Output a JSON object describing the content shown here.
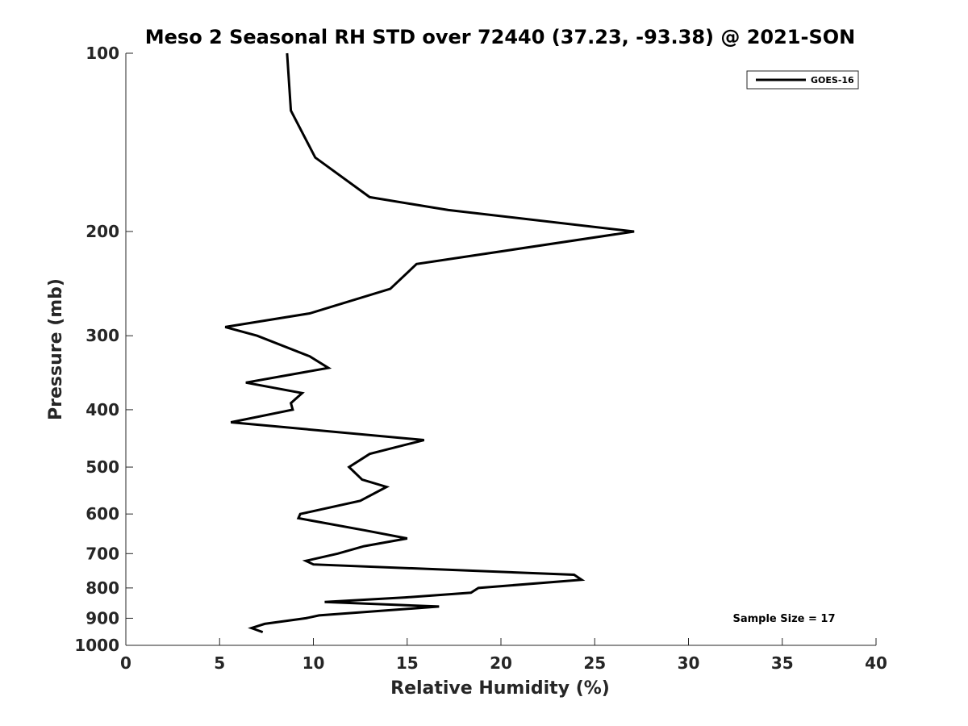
{
  "chart_data": {
    "type": "line",
    "title": "Meso 2 Seasonal RH STD over 72440 (37.23, -93.38) @ 2021-SON",
    "xlabel": "Relative Humidity (%)",
    "ylabel": "Pressure (mb)",
    "xlim": [
      0,
      40
    ],
    "ylim": [
      100,
      1000
    ],
    "y_scale": "log",
    "y_reversed": true,
    "x_ticks": [
      "0",
      "5",
      "10",
      "15",
      "20",
      "25",
      "30",
      "35",
      "40"
    ],
    "y_ticks": [
      "100",
      "200",
      "300",
      "400",
      "500",
      "600",
      "700",
      "800",
      "900",
      "1000"
    ],
    "grid": false,
    "legend_position": "top-right",
    "annotation": "Sample Size = 17",
    "series": [
      {
        "name": "GOES-16",
        "color": "#000000",
        "x": [
          8.6,
          8.8,
          10.1,
          13.0,
          17.2,
          27.1,
          15.5,
          14.1,
          9.8,
          5.3,
          7.0,
          9.8,
          10.8,
          6.4,
          9.4,
          8.8,
          8.9,
          5.6,
          15.9,
          13.0,
          11.9,
          12.6,
          13.9,
          12.5,
          9.3,
          9.2,
          12.8,
          15.0,
          12.7,
          11.3,
          9.6,
          10.0,
          23.9,
          24.3,
          18.8,
          18.4,
          14.9,
          10.6,
          16.7,
          10.3,
          9.6,
          7.4,
          6.7,
          7.3
        ],
        "y": [
          100,
          125,
          150,
          175,
          184,
          200,
          227,
          250,
          275,
          290,
          300,
          325,
          340,
          360,
          375,
          390,
          400,
          420,
          450,
          475,
          500,
          525,
          540,
          570,
          600,
          610,
          640,
          660,
          680,
          700,
          720,
          730,
          760,
          775,
          800,
          815,
          830,
          845,
          860,
          890,
          900,
          920,
          935,
          950
        ]
      }
    ]
  }
}
